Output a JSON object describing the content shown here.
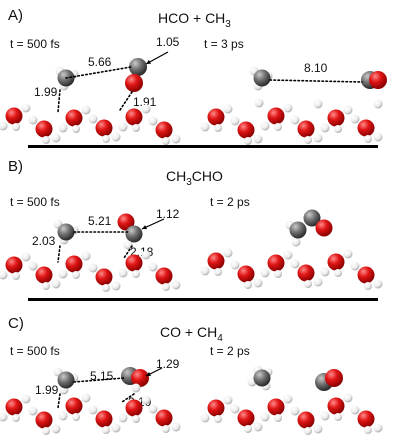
{
  "panels": [
    {
      "label": "A)",
      "title_main": "HCO + CH",
      "title_sub": "3",
      "left_time": "t = 500 fs",
      "right_time": "t = 3 ps",
      "distances_left": [
        "5.66",
        "1.05",
        "1.99",
        "1.91"
      ],
      "distances_right": [
        "8.10"
      ]
    },
    {
      "label": "B)",
      "title_main": "CH",
      "title_sub": "3",
      "title_tail": "CHO",
      "left_time": "t = 500 fs",
      "right_time": "t = 2 ps",
      "distances_left": [
        "5.21",
        "1.12",
        "2.03",
        "2.18"
      ]
    },
    {
      "label": "C)",
      "title_main": "CO + CH",
      "title_sub": "4",
      "left_time": "t = 500 fs",
      "right_time": "t = 2 ps",
      "distances_left": [
        "5.15",
        "1.29",
        "1.99",
        "2.10"
      ]
    }
  ],
  "colors": {
    "oxygen": "#e01515",
    "carbon": "#6f6f6f",
    "hydrogen": "#f4f4f4",
    "bond_line": "#000000"
  }
}
